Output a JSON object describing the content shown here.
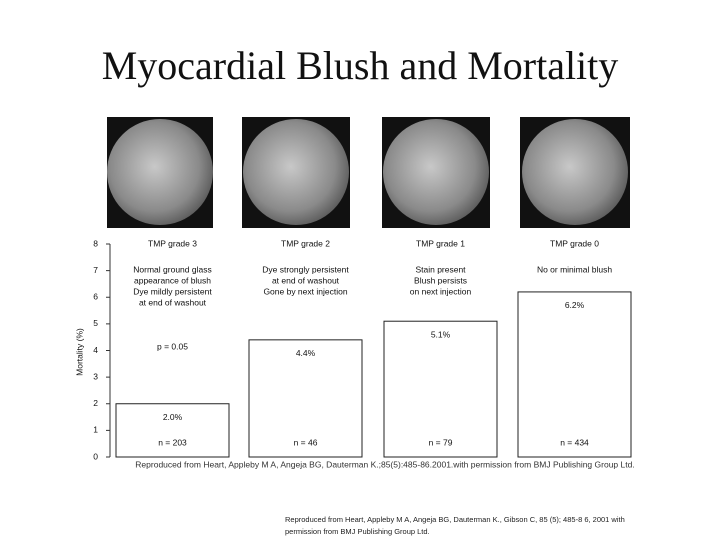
{
  "chart_data": {
    "type": "bar",
    "title": "Myocardial Blush and Mortality",
    "ylabel": "Mortality (%)",
    "categories": [
      "TMP grade 3",
      "TMP grade 2",
      "TMP grade 1",
      "TMP grade 0"
    ],
    "descriptions": [
      [
        "Normal ground glass",
        "appearance of blush",
        "Dye mildly persistent",
        "at end of washout"
      ],
      [
        "Dye strongly persistent",
        "at end of washout",
        "Gone by next injection"
      ],
      [
        "Stain present",
        "Blush persists",
        "on next injection"
      ],
      [
        "No or minimal blush"
      ]
    ],
    "values": [
      2.0,
      4.4,
      5.1,
      6.2
    ],
    "value_labels": [
      "2.0%",
      "4.4%",
      "5.1%",
      "6.2%"
    ],
    "n_labels": [
      "n = 203",
      "n = 46",
      "n = 79",
      "n = 434"
    ],
    "annotation": "p = 0.05",
    "ylim": [
      0,
      8
    ],
    "yticks": [
      0,
      1,
      2,
      3,
      4,
      5,
      6,
      7,
      8
    ],
    "color": "#ffffff"
  },
  "caption": "Reproduced from Heart, Appleby M A, Angeja BG, Dauterman K.;85(5):485-86.2001.with permission from BMJ Publishing Group Ltd.",
  "footnote": [
    "Reproduced from Heart, Appleby M A, Angeja BG, Dauterman K., Gibson C, 85 (5); 485-8 6, 2001 with",
    "permission from BMJ Publishing Group Ltd."
  ]
}
